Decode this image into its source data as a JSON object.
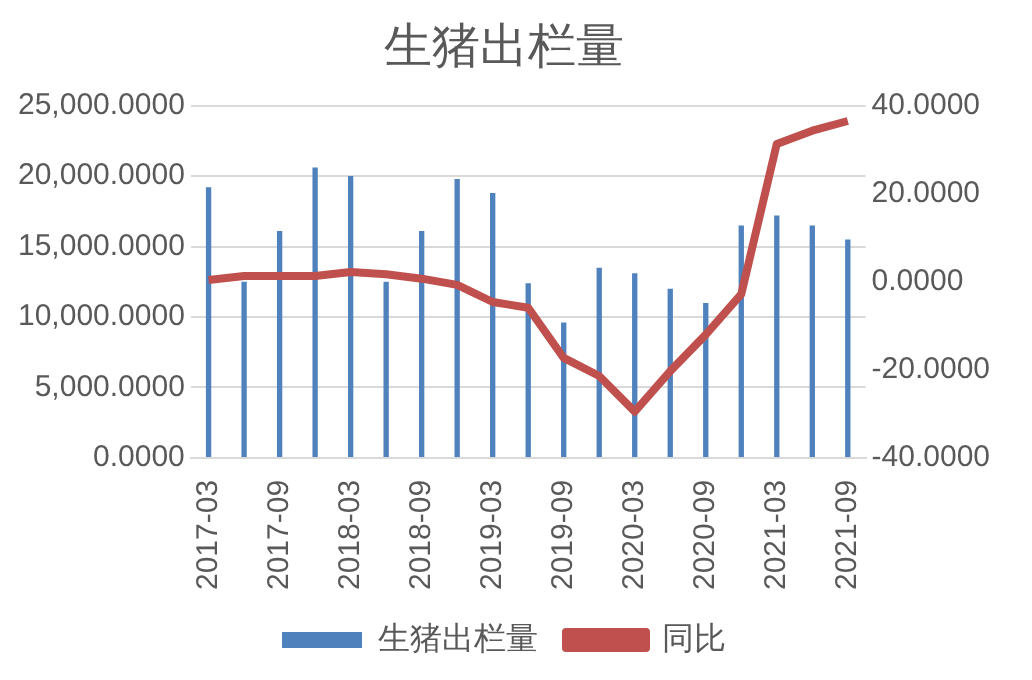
{
  "chart_data": {
    "type": "bar",
    "title": "生猪出栏量",
    "categories": [
      "2017-03",
      null,
      "2017-09",
      null,
      "2018-03",
      null,
      "2018-09",
      null,
      "2019-03",
      null,
      "2019-09",
      null,
      "2020-03",
      null,
      "2020-09",
      null,
      "2021-03",
      null,
      "2021-09"
    ],
    "series": [
      {
        "name": "生猪出栏量",
        "color": "#4f81bd",
        "values": [
          19200,
          12500,
          16100,
          20600,
          20000,
          12500,
          16100,
          19800,
          18800,
          12400,
          9600,
          13500,
          13100,
          12000,
          11000,
          16500,
          17200,
          16500,
          15500
        ]
      },
      {
        "name": "同比",
        "type": "line",
        "axis": "y2",
        "color": "#c0504d",
        "values": [
          0.4,
          1.3,
          1.3,
          1.3,
          2.2,
          1.7,
          0.7,
          -0.7,
          -4.6,
          -5.9,
          -17.3,
          -21.4,
          -29.5,
          -20.3,
          -12,
          -2.8,
          31.3,
          34.3,
          36.5
        ]
      }
    ],
    "ylim": [
      0,
      25000
    ],
    "yticks": [
      {
        "value": 0,
        "label": "0.0000"
      },
      {
        "value": 5000,
        "label": "5,000.0000"
      },
      {
        "value": 10000,
        "label": "10,000.0000"
      },
      {
        "value": 15000,
        "label": "15,000.0000"
      },
      {
        "value": 20000,
        "label": "20,000.0000"
      },
      {
        "value": 25000,
        "label": "25,000.0000"
      }
    ],
    "y2lim": [
      -40,
      40
    ],
    "y2ticks": [
      {
        "value": -40,
        "label": "-40.0000"
      },
      {
        "value": -20,
        "label": "-20.0000"
      },
      {
        "value": 0,
        "label": "0.0000"
      },
      {
        "value": 20,
        "label": "20.0000"
      },
      {
        "value": 40,
        "label": "40.0000"
      }
    ],
    "grid": "y",
    "legend": "bottom",
    "marker": "none"
  }
}
